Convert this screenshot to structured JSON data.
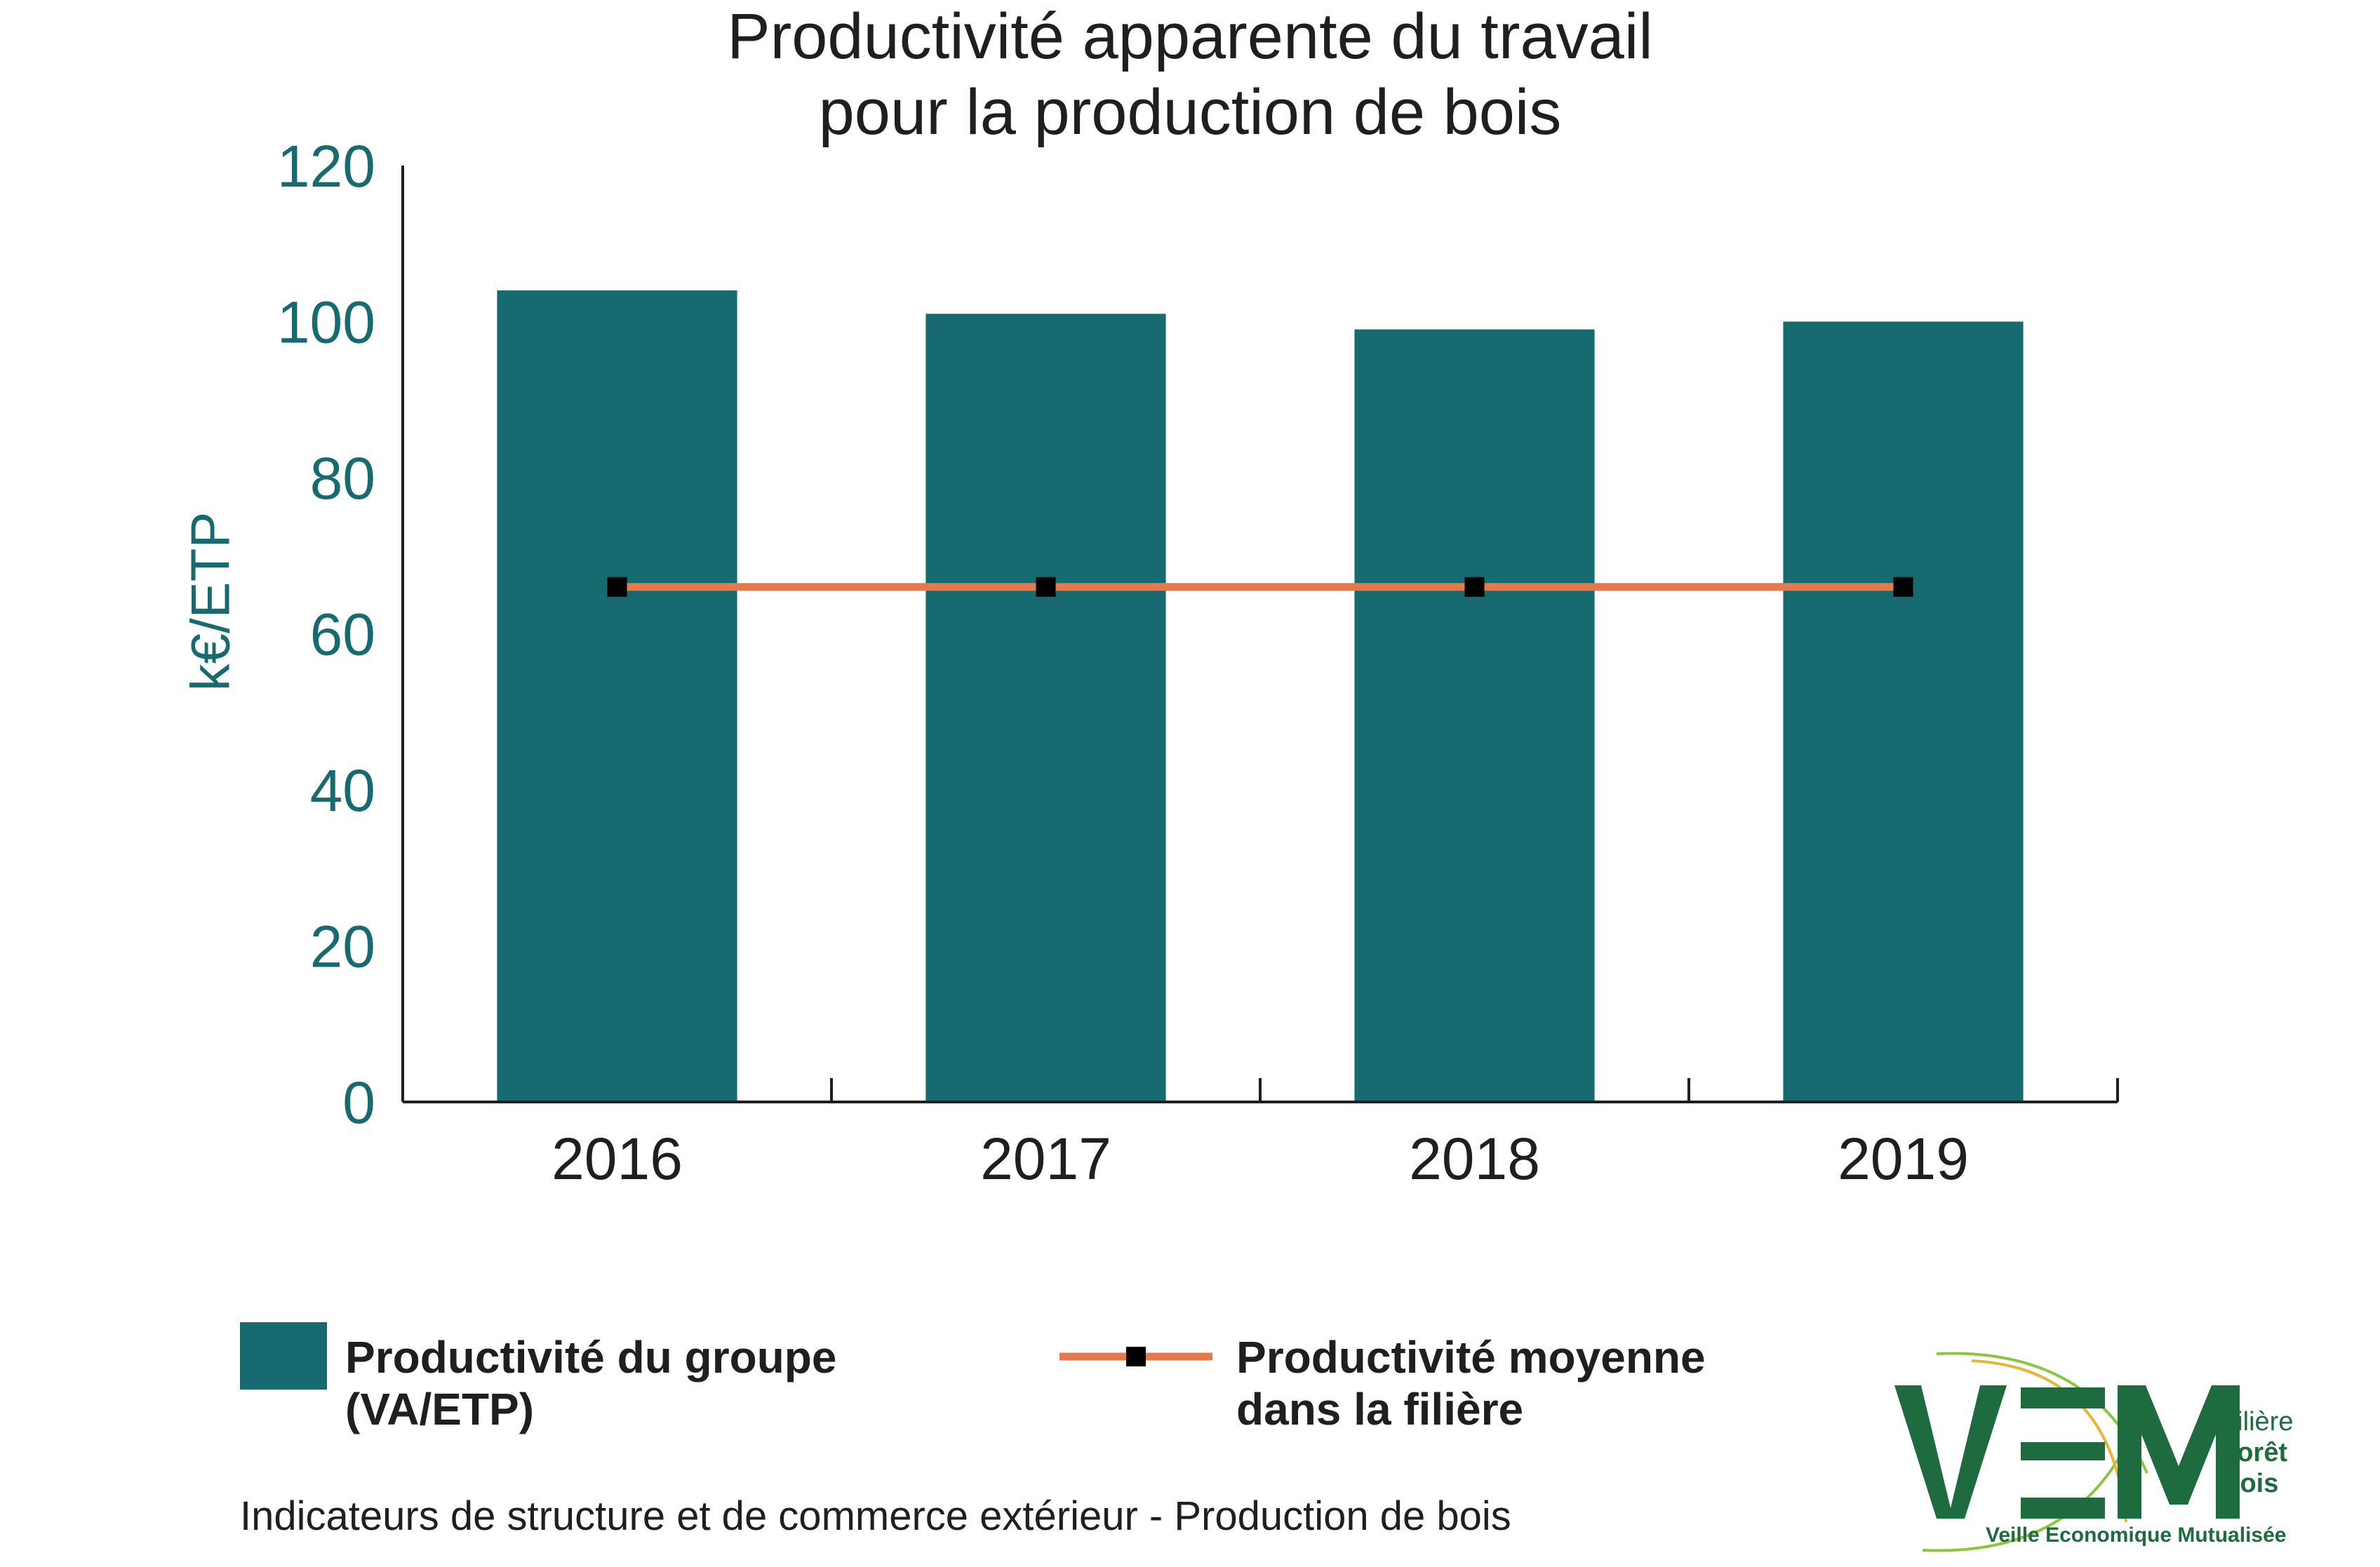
{
  "chart_data": {
    "type": "bar",
    "title": [
      "Productivité apparente du travail",
      "pour la production de bois"
    ],
    "ylabel": "k€/ETP",
    "xlabel": "",
    "ylim": [
      0,
      120
    ],
    "yticks": [
      "0",
      "20",
      "40",
      "60",
      "80",
      "100",
      "120"
    ],
    "categories": [
      "2016",
      "2017",
      "2018",
      "2019"
    ],
    "series": [
      {
        "name": "Productivité du groupe (VA/ETP)",
        "type": "bar",
        "color": "#166a70",
        "values": [
          104,
          101,
          99,
          100
        ]
      },
      {
        "name": "Productivité moyenne dans la filière",
        "type": "line",
        "color": "#e8784a",
        "marker_color": "#000000",
        "values": [
          66,
          66,
          66,
          66
        ]
      }
    ],
    "legend_position": "bottom"
  },
  "legend": {
    "bar_label_1": "Productivité du groupe",
    "bar_label_2": "(VA/ETP)",
    "line_label_1": "Productivité moyenne",
    "line_label_2": "dans la filière"
  },
  "footer": "Indicateurs de structure et de commerce extérieur - Production de bois",
  "logo": {
    "icon": "vem-logo-icon",
    "mark": "VEM",
    "side_1": "Filière",
    "side_2": "Forêt",
    "side_3": "Bois",
    "bottom": "Veille Economique Mutualisée"
  }
}
